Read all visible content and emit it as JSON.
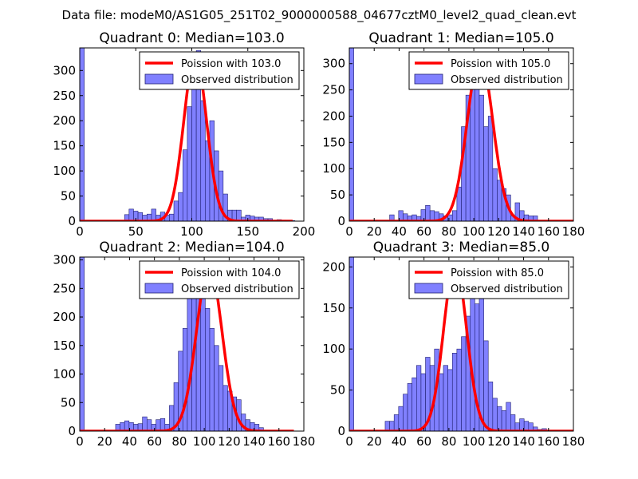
{
  "figure_title": "Data file: modeM0/AS1G05_251T02_9000000588_04677cztM0_level2_quad_clean.evt",
  "colors": {
    "poisson": "#ff0000",
    "bar_fill": "#8080ff",
    "bar_edge": "#202070",
    "legend_edge": "#000000"
  },
  "legend_labels": {
    "observed": "Observed distribution"
  },
  "chart_data": [
    {
      "type": "bar",
      "title": "Quadrant 0: Median=103.0",
      "xlabel": "",
      "ylabel": "",
      "xlim": [
        0,
        200
      ],
      "ylim": [
        0,
        345
      ],
      "xticks": [
        0,
        50,
        100,
        150,
        200
      ],
      "yticks": [
        0,
        50,
        100,
        150,
        200,
        250,
        300
      ],
      "legend": {
        "loc": "upper right",
        "entries": [
          "Poission with 103.0",
          "Observed distribution"
        ]
      },
      "bin_width": 4,
      "bins": [
        0,
        4,
        8,
        12,
        16,
        20,
        24,
        28,
        32,
        36,
        40,
        44,
        48,
        52,
        56,
        60,
        64,
        68,
        72,
        76,
        80,
        84,
        88,
        92,
        96,
        100,
        104,
        108,
        112,
        116,
        120,
        124,
        128,
        132,
        136,
        140,
        144,
        148,
        152,
        156,
        160,
        164,
        168,
        172,
        176,
        180,
        184,
        188
      ],
      "counts": [
        345,
        0,
        0,
        0,
        0,
        0,
        0,
        0,
        0,
        0,
        13,
        24,
        20,
        17,
        12,
        14,
        24,
        12,
        18,
        12,
        14,
        40,
        57,
        142,
        228,
        315,
        340,
        240,
        160,
        200,
        140,
        100,
        54,
        22,
        22,
        22,
        8,
        12,
        10,
        8,
        8,
        5,
        5,
        2,
        3,
        2,
        1,
        1
      ],
      "series": [
        {
          "name": "Poission with 103.0",
          "type": "line",
          "mean": 103.0,
          "peak": 330,
          "x_range": [
            0,
            190
          ]
        },
        {
          "name": "Observed distribution",
          "type": "histogram"
        }
      ]
    },
    {
      "type": "bar",
      "title": "Quadrant 1: Median=105.0",
      "xlabel": "",
      "ylabel": "",
      "xlim": [
        0,
        180
      ],
      "ylim": [
        0,
        330
      ],
      "xticks": [
        0,
        20,
        40,
        60,
        80,
        100,
        120,
        140,
        160,
        180
      ],
      "yticks": [
        0,
        50,
        100,
        150,
        200,
        250,
        300
      ],
      "legend": {
        "loc": "upper right",
        "entries": [
          "Poission with 105.0",
          "Observed distribution"
        ]
      },
      "bin_width": 3.6,
      "bins": [
        0,
        3.6,
        7.2,
        10.8,
        14.4,
        18,
        21.6,
        25.2,
        28.8,
        32.4,
        36,
        39.6,
        43.2,
        46.8,
        50.4,
        54,
        57.6,
        61.2,
        64.8,
        68.4,
        72,
        75.6,
        79.2,
        82.8,
        86.4,
        90,
        93.6,
        97.2,
        100.8,
        104.4,
        108,
        111.6,
        115.2,
        118.8,
        122.4,
        126,
        129.6,
        133.2,
        136.8,
        140.4,
        144,
        147.6,
        151.2,
        154.8,
        158.4,
        162,
        165.6,
        169.2,
        172.8,
        176.4
      ],
      "counts": [
        330,
        0,
        0,
        0,
        0,
        0,
        0,
        0,
        0,
        12,
        0,
        20,
        14,
        10,
        12,
        9,
        22,
        30,
        20,
        18,
        14,
        10,
        12,
        20,
        65,
        180,
        240,
        305,
        275,
        240,
        180,
        200,
        100,
        78,
        62,
        50,
        10,
        35,
        20,
        12,
        10,
        10,
        0,
        0,
        0,
        0,
        0,
        0,
        0,
        0
      ],
      "series": [
        {
          "name": "Poission with 105.0",
          "type": "line",
          "mean": 105.0,
          "peak": 315,
          "x_range": [
            0,
            180
          ]
        },
        {
          "name": "Observed distribution",
          "type": "histogram"
        }
      ]
    },
    {
      "type": "bar",
      "title": "Quadrant 2: Median=104.0",
      "xlabel": "",
      "ylabel": "",
      "xlim": [
        0,
        180
      ],
      "ylim": [
        0,
        305
      ],
      "xticks": [
        0,
        20,
        40,
        60,
        80,
        100,
        120,
        140,
        160,
        180
      ],
      "yticks": [
        0,
        50,
        100,
        150,
        200,
        250,
        300
      ],
      "legend": {
        "loc": "upper right",
        "entries": [
          "Poission with 104.0",
          "Observed distribution"
        ]
      },
      "bin_width": 3.6,
      "bins": [
        0,
        3.6,
        7.2,
        10.8,
        14.4,
        18,
        21.6,
        25.2,
        28.8,
        32.4,
        36,
        39.6,
        43.2,
        46.8,
        50.4,
        54,
        57.6,
        61.2,
        64.8,
        68.4,
        72,
        75.6,
        79.2,
        82.8,
        86.4,
        90,
        93.6,
        97.2,
        100.8,
        104.4,
        108,
        111.6,
        115.2,
        118.8,
        122.4,
        126,
        129.6,
        133.2,
        136.8,
        140.4,
        144,
        147.6,
        151.2,
        154.8,
        158.4,
        162,
        165.6,
        169.2,
        172.8,
        176.4
      ],
      "counts": [
        305,
        0,
        0,
        0,
        0,
        0,
        0,
        0,
        12,
        15,
        18,
        15,
        12,
        13,
        25,
        20,
        12,
        20,
        22,
        12,
        45,
        85,
        140,
        180,
        245,
        280,
        250,
        285,
        215,
        180,
        150,
        115,
        80,
        70,
        60,
        55,
        30,
        20,
        15,
        12,
        6,
        0,
        0,
        0,
        0,
        0,
        0,
        0,
        0,
        0
      ],
      "series": [
        {
          "name": "Poission with 104.0",
          "type": "line",
          "mean": 104.0,
          "peak": 290,
          "x_range": [
            0,
            172
          ]
        },
        {
          "name": "Observed distribution",
          "type": "histogram"
        }
      ]
    },
    {
      "type": "bar",
      "title": "Quadrant 3: Median=85.0",
      "xlabel": "",
      "ylabel": "",
      "xlim": [
        0,
        180
      ],
      "ylim": [
        0,
        212
      ],
      "xticks": [
        0,
        20,
        40,
        60,
        80,
        100,
        120,
        140,
        160,
        180
      ],
      "yticks": [
        0,
        50,
        100,
        150,
        200
      ],
      "legend": {
        "loc": "upper right",
        "entries": [
          "Poission with 85.0",
          "Observed distribution"
        ]
      },
      "bin_width": 3.6,
      "bins": [
        0,
        3.6,
        7.2,
        10.8,
        14.4,
        18,
        21.6,
        25.2,
        28.8,
        32.4,
        36,
        39.6,
        43.2,
        46.8,
        50.4,
        54,
        57.6,
        61.2,
        64.8,
        68.4,
        72,
        75.6,
        79.2,
        82.8,
        86.4,
        90,
        93.6,
        97.2,
        100.8,
        104.4,
        108,
        111.6,
        115.2,
        118.8,
        122.4,
        126,
        129.6,
        133.2,
        136.8,
        140.4,
        144,
        147.6,
        151.2,
        154.8,
        158.4,
        162,
        165.6,
        169.2,
        172.8,
        176.4
      ],
      "counts": [
        212,
        0,
        0,
        0,
        0,
        0,
        0,
        0,
        12,
        12,
        20,
        30,
        45,
        58,
        65,
        80,
        70,
        90,
        80,
        100,
        70,
        80,
        75,
        95,
        100,
        115,
        140,
        180,
        155,
        200,
        110,
        60,
        40,
        30,
        25,
        35,
        20,
        10,
        15,
        12,
        10,
        5,
        2,
        3,
        1,
        1,
        1,
        0,
        0,
        0
      ],
      "series": [
        {
          "name": "Poission with 85.0",
          "type": "line",
          "mean": 85.0,
          "peak": 205,
          "x_range": [
            0,
            180
          ]
        },
        {
          "name": "Observed distribution",
          "type": "histogram"
        }
      ]
    }
  ]
}
